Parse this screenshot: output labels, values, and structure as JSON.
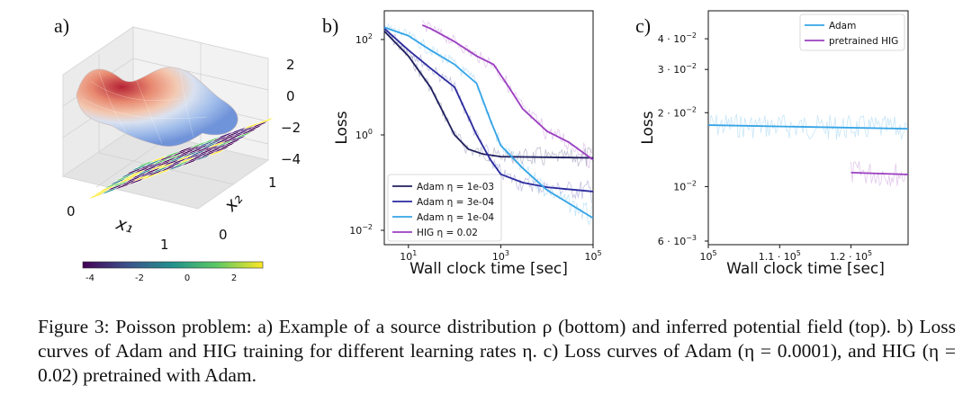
{
  "panels": {
    "a": {
      "label": "a)"
    },
    "b": {
      "label": "b)"
    },
    "c": {
      "label": "c)"
    }
  },
  "panel_a": {
    "z_ticks": [
      "2",
      "0",
      "−2",
      "−4"
    ],
    "x_label": "x₁",
    "y_label": "x₂",
    "x_ticks": [
      "0",
      "1"
    ],
    "y_ticks": [
      "0",
      "1"
    ],
    "colorbar_ticks": [
      "-4",
      "-2",
      "0",
      "2"
    ],
    "colors": {
      "surface_high": "#b2182b",
      "surface_low": "#6a8fd8",
      "viridis_low": "#440154",
      "viridis_high": "#fde725"
    }
  },
  "chart_data": [
    {
      "type": "line",
      "id": "b",
      "title": "",
      "xlabel": "Wall clock time [sec]",
      "ylabel": "Loss",
      "xscale": "log",
      "yscale": "log",
      "xlim": [
        3,
        100000
      ],
      "ylim": [
        0.005,
        400
      ],
      "x_ticks": [
        {
          "v": 10,
          "base": "10",
          "exp": "1"
        },
        {
          "v": 1000,
          "base": "10",
          "exp": "3"
        },
        {
          "v": 100000,
          "base": "10",
          "exp": "5"
        }
      ],
      "y_ticks": [
        {
          "v": 100,
          "base": "10",
          "exp": "2"
        },
        {
          "v": 1,
          "base": "10",
          "exp": "0"
        },
        {
          "v": 0.01,
          "base": "10",
          "exp": "−2"
        }
      ],
      "legend": "bottom-left",
      "series": [
        {
          "name": "Adam η = 1e-03",
          "color": "#1f1f5e",
          "x": [
            3,
            10,
            30,
            100,
            200,
            400,
            1000,
            10000,
            100000
          ],
          "y": [
            150,
            45,
            10,
            1.0,
            0.5,
            0.4,
            0.35,
            0.34,
            0.33
          ]
        },
        {
          "name": "Adam η = 3e-04",
          "color": "#2a2a9e",
          "x": [
            3,
            10,
            30,
            100,
            300,
            600,
            1000,
            3000,
            10000,
            100000
          ],
          "y": [
            170,
            60,
            25,
            10,
            1.0,
            0.3,
            0.15,
            0.1,
            0.08,
            0.065
          ]
        },
        {
          "name": "Adam η = 1e-04",
          "color": "#35a4e6",
          "x": [
            3,
            10,
            30,
            100,
            300,
            600,
            1000,
            3000,
            10000,
            100000
          ],
          "y": [
            180,
            120,
            60,
            30,
            12,
            2,
            0.6,
            0.2,
            0.07,
            0.018
          ]
        },
        {
          "name": "HIG η = 0.02",
          "color": "#9b3fc0",
          "x": [
            20,
            30,
            100,
            300,
            700,
            1500,
            3000,
            10000,
            30000,
            100000
          ],
          "y": [
            200,
            170,
            90,
            45,
            30,
            10,
            3.5,
            1.2,
            0.7,
            0.3
          ]
        }
      ]
    },
    {
      "type": "line",
      "id": "c",
      "title": "",
      "xlabel": "Wall clock time [sec]",
      "ylabel": "Loss",
      "yscale": "log",
      "xlim": [
        100000,
        128000
      ],
      "ylim": [
        0.0058,
        0.052
      ],
      "x_ticks": [
        {
          "v": 100000,
          "base": "10",
          "exp": "5"
        },
        {
          "v": 110000,
          "base": "1.1 · 10",
          "exp": "5"
        },
        {
          "v": 120000,
          "base": "1.2 · 10",
          "exp": "5"
        }
      ],
      "y_ticks": [
        {
          "v": 0.04,
          "base": "4 · 10",
          "exp": "−2"
        },
        {
          "v": 0.03,
          "base": "3 · 10",
          "exp": "−2"
        },
        {
          "v": 0.02,
          "base": "2 · 10",
          "exp": "−2"
        },
        {
          "v": 0.01,
          "base": "10",
          "exp": "−2"
        },
        {
          "v": 0.006,
          "base": "6 · 10",
          "exp": "−3"
        }
      ],
      "legend": "top-right",
      "series": [
        {
          "name": "Adam",
          "color": "#35a4e6",
          "x": [
            100000,
            128000
          ],
          "y": [
            0.0178,
            0.0172
          ]
        },
        {
          "name": "pretrained HIG",
          "color": "#9b3fc0",
          "x": [
            120000,
            128000
          ],
          "y": [
            0.0114,
            0.0112
          ]
        }
      ]
    }
  ],
  "caption": {
    "text": "Figure 3: Poisson problem: a) Example of a source distribution ρ (bottom) and inferred potential field (top). b) Loss curves of Adam and HIG training for different learning rates η. c) Loss curves of Adam (η = 0.0001), and HIG (η = 0.02) pretrained with Adam."
  }
}
